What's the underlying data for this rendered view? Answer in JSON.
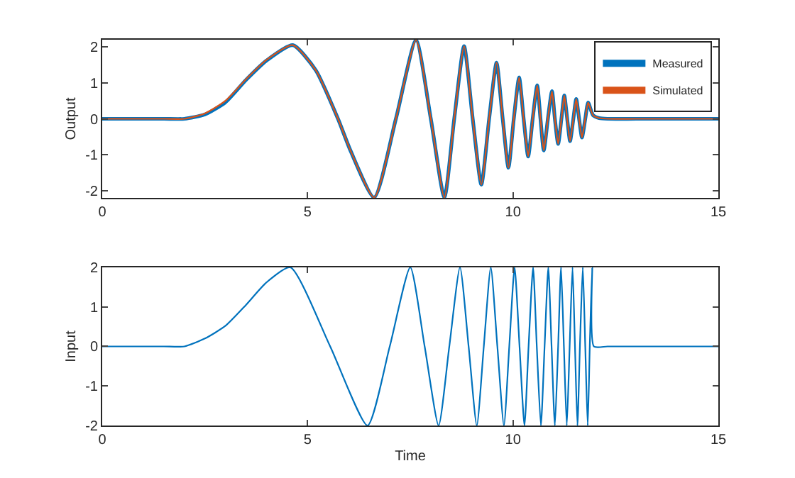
{
  "chart_data": [
    {
      "type": "line",
      "ylabel": "Output",
      "xlim": [
        0,
        15
      ],
      "xticks": [
        0,
        5,
        10,
        15
      ],
      "ylim": [
        -2.2,
        2.2
      ],
      "yticks": [
        -2,
        -1,
        0,
        1,
        2
      ],
      "grid": false,
      "legend": "top right",
      "line_style": "solid",
      "marker": "none",
      "series": [
        {
          "name": "Measured",
          "color": "#0072bd",
          "x": [
            0,
            1.5,
            2,
            2.5,
            3,
            3.5,
            4,
            4.64,
            5.2,
            5.74,
            6.05,
            6.62,
            7.15,
            7.64,
            8.0,
            8.33,
            8.57,
            8.81,
            9.02,
            9.23,
            9.42,
            9.6,
            9.75,
            9.89,
            10.02,
            10.15,
            10.26,
            10.37,
            10.48,
            10.59,
            10.67,
            10.75,
            10.85,
            10.95,
            11.02,
            11.1,
            11.18,
            11.25,
            11.32,
            11.39,
            11.47,
            11.54,
            11.61,
            11.68,
            11.76,
            11.83,
            11.95,
            12.1,
            12.3,
            13,
            15
          ],
          "values": [
            0,
            0,
            0,
            0.12,
            0.46,
            1.08,
            1.62,
            2.05,
            1.35,
            0,
            -0.9,
            -2.19,
            0,
            2.19,
            0,
            -2.19,
            0,
            2.02,
            0,
            -1.83,
            0,
            1.56,
            0,
            -1.36,
            0,
            1.15,
            0,
            -1.05,
            0,
            0.93,
            0,
            -0.88,
            0,
            0.77,
            0,
            -0.7,
            0,
            0.65,
            0,
            -0.62,
            0,
            0.55,
            0,
            -0.52,
            0,
            0.45,
            0.1,
            0.02,
            0,
            0,
            0
          ]
        },
        {
          "name": "Simulated",
          "color": "#d95319",
          "x": [
            0,
            1.5,
            2,
            2.5,
            3,
            3.5,
            4,
            4.64,
            5.2,
            5.74,
            6.05,
            6.62,
            7.15,
            7.64,
            8.0,
            8.33,
            8.57,
            8.81,
            9.02,
            9.23,
            9.42,
            9.6,
            9.75,
            9.89,
            10.02,
            10.15,
            10.26,
            10.37,
            10.48,
            10.59,
            10.67,
            10.75,
            10.85,
            10.95,
            11.02,
            11.1,
            11.18,
            11.25,
            11.32,
            11.39,
            11.47,
            11.54,
            11.61,
            11.68,
            11.76,
            11.83,
            11.95,
            12.1,
            12.3,
            13,
            15
          ],
          "values": [
            0,
            0,
            0,
            0.15,
            0.5,
            1.1,
            1.64,
            2.05,
            1.35,
            0,
            -0.9,
            -2.19,
            0,
            2.19,
            0,
            -2.19,
            0,
            2.02,
            0,
            -1.83,
            0,
            1.56,
            0,
            -1.36,
            0,
            1.15,
            0,
            -1.05,
            0,
            0.93,
            0,
            -0.88,
            0,
            0.77,
            0,
            -0.7,
            0,
            0.65,
            0,
            -0.62,
            0,
            0.55,
            0,
            -0.52,
            0,
            0.45,
            0.1,
            0.02,
            0,
            0,
            0
          ]
        }
      ]
    },
    {
      "type": "line",
      "ylabel": "Input",
      "xlabel": "Time",
      "xlim": [
        0,
        15
      ],
      "xticks": [
        0,
        5,
        10,
        15
      ],
      "ylim": [
        -2,
        2
      ],
      "yticks": [
        -2,
        -1,
        0,
        1,
        2
      ],
      "grid": false,
      "line_style": "solid",
      "marker": "none",
      "series": [
        {
          "color": "#0072bd",
          "x": [
            0,
            1.5,
            2,
            2.5,
            3,
            3.5,
            4,
            4.58,
            5.55,
            6.46,
            7.0,
            7.5,
            7.85,
            8.19,
            8.45,
            8.71,
            8.92,
            9.12,
            9.29,
            9.46,
            9.62,
            9.78,
            9.91,
            10.04,
            10.16,
            10.28,
            10.38,
            10.49,
            10.58,
            10.68,
            10.77,
            10.86,
            10.94,
            11.02,
            11.1,
            11.17,
            11.24,
            11.31,
            11.38,
            11.45,
            11.51,
            11.57,
            11.63,
            11.7,
            11.76,
            11.82,
            11.87,
            11.93,
            11.97,
            12.3,
            13,
            15
          ],
          "values": [
            0,
            0,
            0,
            0.2,
            0.52,
            1.05,
            1.62,
            2,
            0,
            -2,
            0,
            2,
            0,
            -2,
            0,
            2,
            0,
            -2,
            0,
            2,
            0,
            -2,
            0,
            2,
            0,
            -2,
            0,
            2,
            0,
            -2,
            0,
            2,
            0,
            -2,
            0,
            2,
            0,
            -2,
            0,
            2,
            0,
            -2,
            0,
            2,
            0,
            -2,
            0,
            2,
            0,
            0,
            0,
            0
          ]
        }
      ]
    }
  ]
}
